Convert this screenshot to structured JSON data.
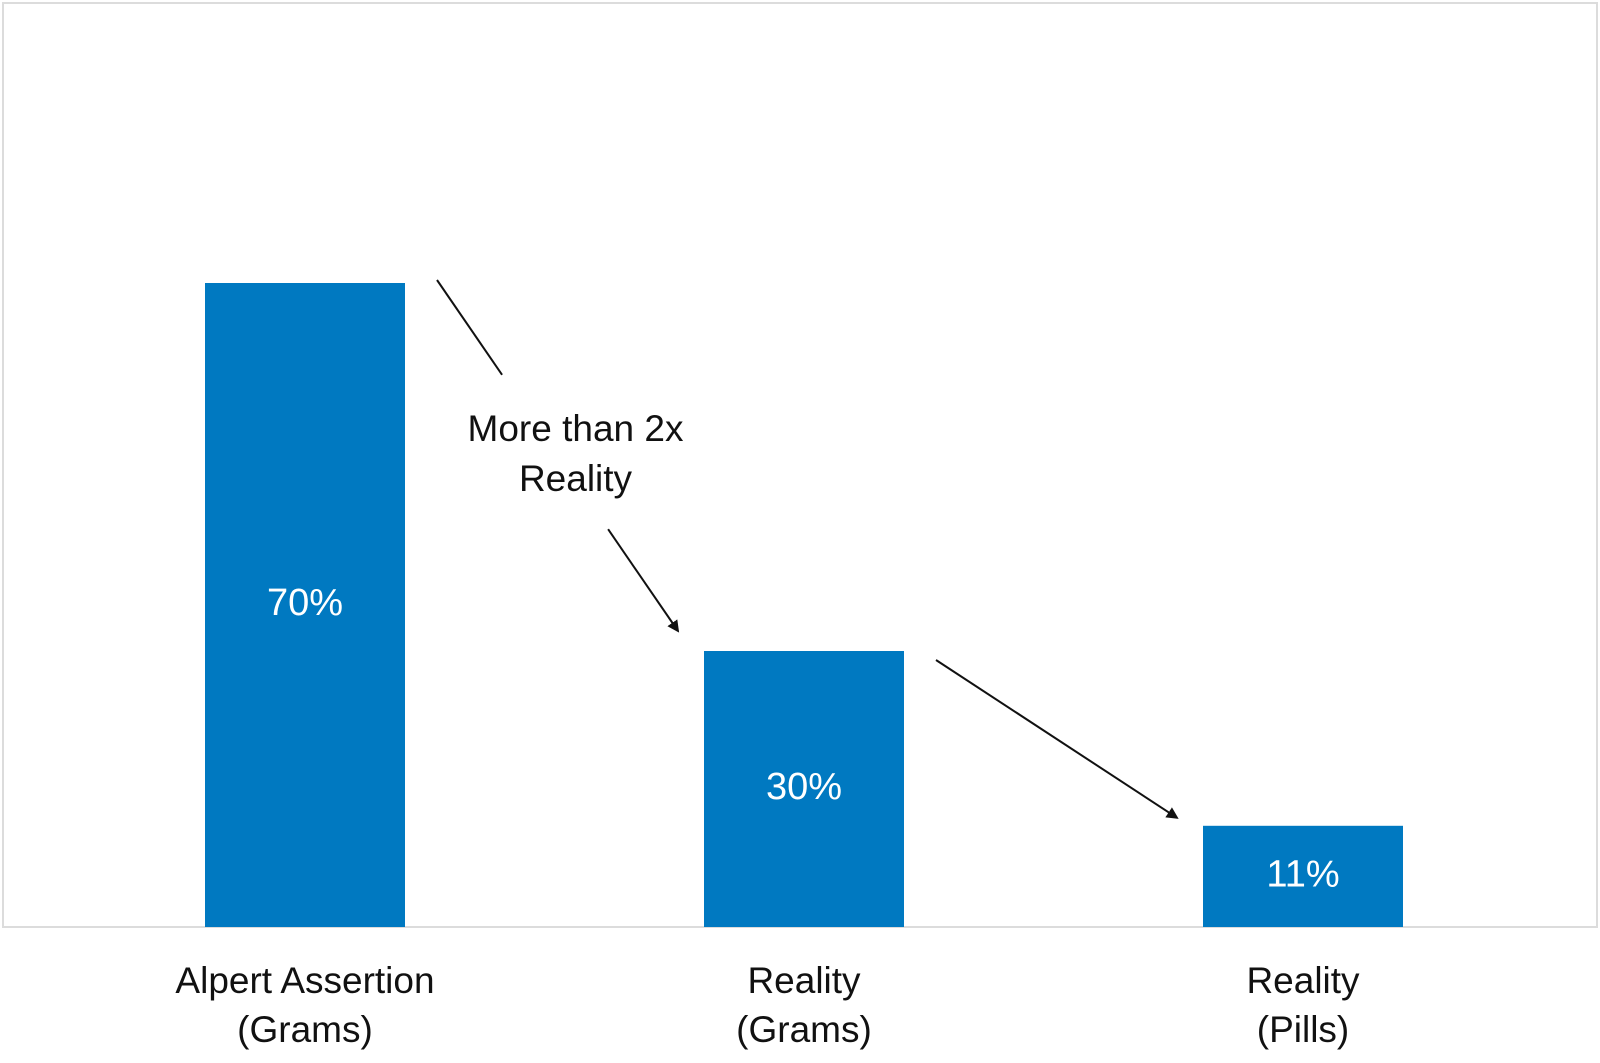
{
  "chart_data": {
    "type": "bar",
    "categories": [
      [
        "Alpert Assertion",
        "(Grams)"
      ],
      [
        "Reality",
        "(Grams)"
      ],
      [
        "Reality",
        "(Pills)"
      ]
    ],
    "values": [
      70,
      30,
      11
    ],
    "value_labels": [
      "70%",
      "30%",
      "11%"
    ],
    "ylim": [
      0,
      100
    ],
    "grid": false,
    "annotations": [
      {
        "text": [
          "More than 2x",
          "Reality"
        ],
        "from_bar": 0,
        "to_bar": 1
      },
      {
        "text": [],
        "from_bar": 1,
        "to_bar": 2
      }
    ],
    "colors": {
      "bar": "#0079C1",
      "frame": "#dcdcdc",
      "arrow": "#111111"
    }
  }
}
